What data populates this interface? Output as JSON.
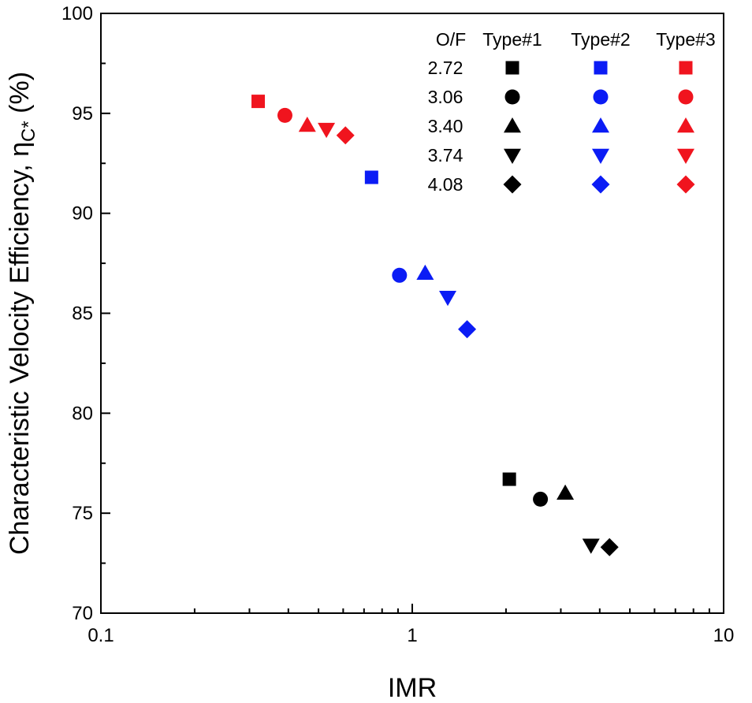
{
  "chart_data": {
    "type": "scatter",
    "xscale": "log",
    "xlim": [
      0.1,
      10
    ],
    "ylim": [
      70,
      100
    ],
    "xticks": [
      0.1,
      1,
      10
    ],
    "xtick_labels": [
      "0.1",
      "1",
      "10"
    ],
    "yticks": [
      70,
      75,
      80,
      85,
      90,
      95,
      100
    ],
    "ytick_labels": [
      "70",
      "75",
      "80",
      "85",
      "90",
      "95",
      "100"
    ],
    "xlabel": "IMR",
    "ylabel": {
      "prefix": "Characteristic Velocity Efficiency, ",
      "symbol": "η",
      "subscript": "C*",
      "suffix": " (%)"
    },
    "legend": {
      "position": "top-right",
      "header": [
        "O/F",
        "Type#1",
        "Type#2",
        "Type#3"
      ],
      "rows": [
        {
          "of": "2.72",
          "marker": "square"
        },
        {
          "of": "3.06",
          "marker": "circle"
        },
        {
          "of": "3.40",
          "marker": "triangle-up"
        },
        {
          "of": "3.74",
          "marker": "triangle-down"
        },
        {
          "of": "4.08",
          "marker": "diamond"
        }
      ]
    },
    "series": [
      {
        "name": "Type#1",
        "color": "#000000",
        "points": [
          {
            "of": "2.72",
            "x": 2.05,
            "y": 76.7,
            "marker": "square"
          },
          {
            "of": "3.06",
            "x": 2.58,
            "y": 75.7,
            "marker": "circle"
          },
          {
            "of": "3.40",
            "x": 3.1,
            "y": 76.0,
            "marker": "triangle-up"
          },
          {
            "of": "3.74",
            "x": 3.75,
            "y": 73.4,
            "marker": "triangle-down"
          },
          {
            "of": "4.08",
            "x": 4.3,
            "y": 73.3,
            "marker": "diamond"
          }
        ]
      },
      {
        "name": "Type#2",
        "color": "#0b1cf5",
        "points": [
          {
            "of": "2.72",
            "x": 0.74,
            "y": 91.8,
            "marker": "square"
          },
          {
            "of": "3.06",
            "x": 0.91,
            "y": 86.9,
            "marker": "circle"
          },
          {
            "of": "3.40",
            "x": 1.1,
            "y": 87.0,
            "marker": "triangle-up"
          },
          {
            "of": "3.74",
            "x": 1.3,
            "y": 85.8,
            "marker": "triangle-down"
          },
          {
            "of": "4.08",
            "x": 1.5,
            "y": 84.2,
            "marker": "diamond"
          }
        ]
      },
      {
        "name": "Type#3",
        "color": "#f0141e",
        "points": [
          {
            "of": "2.72",
            "x": 0.32,
            "y": 95.6,
            "marker": "square"
          },
          {
            "of": "3.06",
            "x": 0.39,
            "y": 94.9,
            "marker": "circle"
          },
          {
            "of": "3.40",
            "x": 0.46,
            "y": 94.4,
            "marker": "triangle-up"
          },
          {
            "of": "3.74",
            "x": 0.53,
            "y": 94.2,
            "marker": "triangle-down"
          },
          {
            "of": "4.08",
            "x": 0.61,
            "y": 93.9,
            "marker": "diamond"
          }
        ]
      }
    ]
  }
}
